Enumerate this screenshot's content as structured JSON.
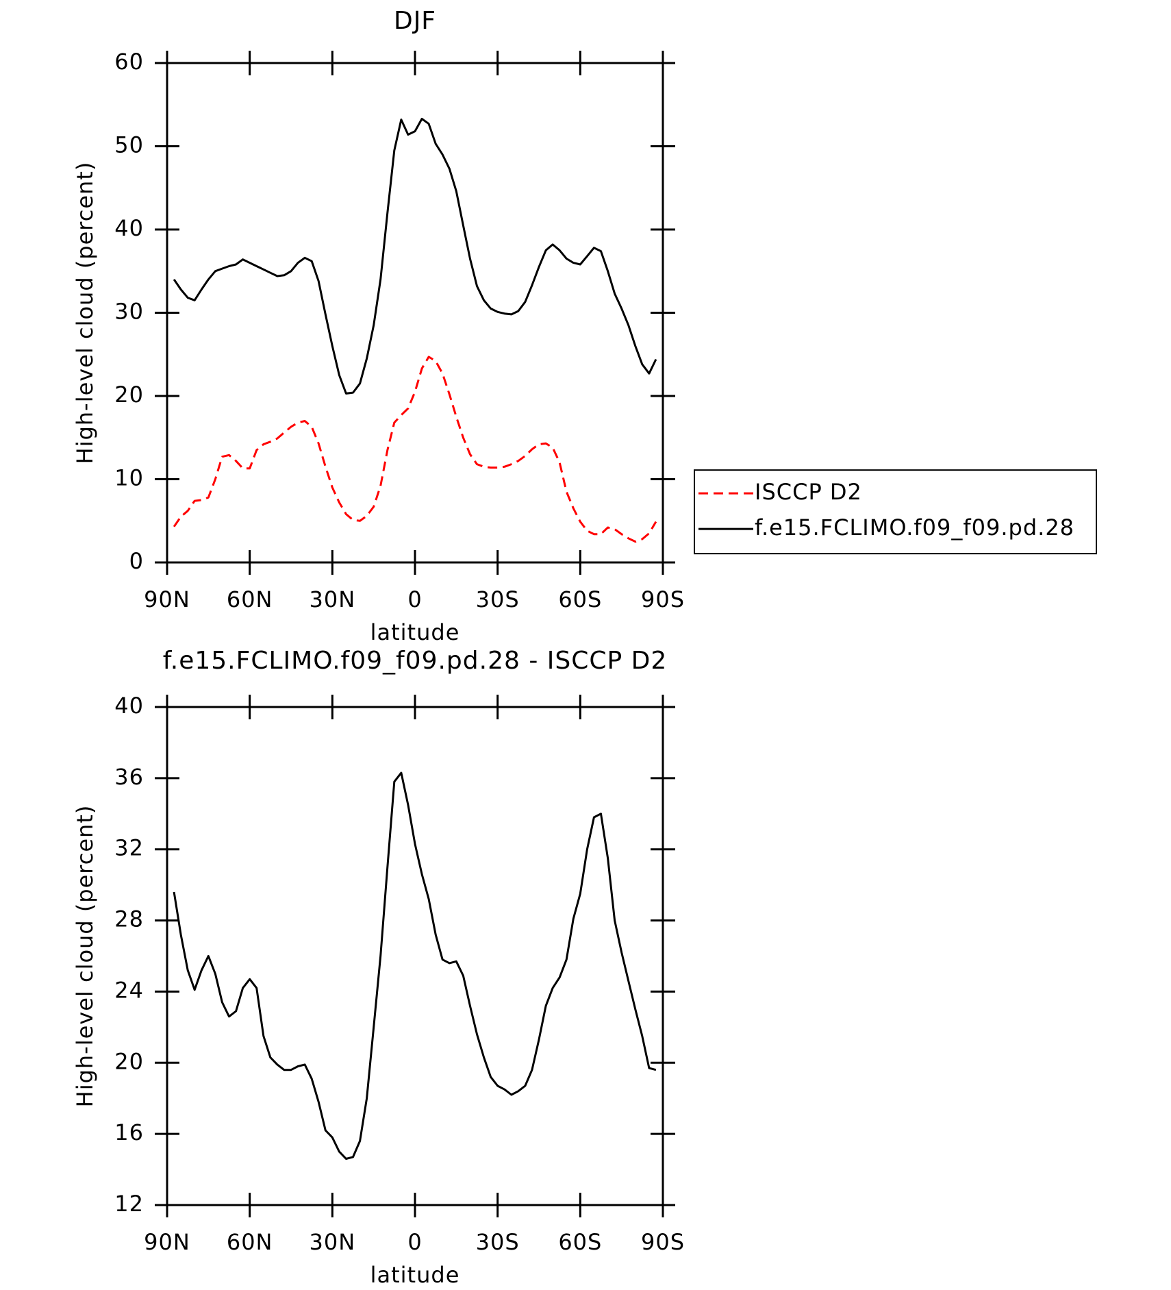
{
  "chart_data": [
    {
      "type": "line",
      "title": "DJF",
      "xlabel": "latitude",
      "ylabel": "High-level cloud (percent)",
      "x": [
        87.5,
        85,
        82.5,
        80,
        77.5,
        75,
        72.5,
        70,
        67.5,
        65,
        62.5,
        60,
        57.5,
        55,
        52.5,
        50,
        47.5,
        45,
        42.5,
        40,
        37.5,
        35,
        32.5,
        30,
        27.5,
        25,
        22.5,
        20,
        17.5,
        15,
        12.5,
        10,
        7.5,
        5,
        2.5,
        0,
        -2.5,
        -5,
        -7.5,
        -10,
        -12.5,
        -15,
        -17.5,
        -20,
        -22.5,
        -25,
        -27.5,
        -30,
        -32.5,
        -35,
        -37.5,
        -40,
        -42.5,
        -45,
        -47.5,
        -50,
        -52.5,
        -55,
        -57.5,
        -60,
        -62.5,
        -65,
        -67.5,
        -70,
        -72.5,
        -75,
        -77.5,
        -80,
        -82.5,
        -85,
        -87.5
      ],
      "series": [
        {
          "name": "ISCCP D2",
          "color": "#ff0000",
          "line_style": "dashed",
          "values": [
            4.3,
            5.5,
            6.2,
            7.4,
            7.5,
            7.8,
            10,
            12.7,
            12.9,
            12.2,
            11.3,
            11.3,
            13.5,
            14.2,
            14.5,
            14.9,
            15.6,
            16.3,
            16.8,
            17.0,
            16.3,
            14.3,
            11.5,
            9.0,
            7.2,
            5.8,
            5.1,
            5.0,
            5.6,
            6.7,
            9.2,
            13.5,
            16.8,
            17.7,
            18.5,
            20.5,
            23.3,
            24.7,
            24.2,
            22.7,
            20.2,
            17.5,
            15.0,
            13.0,
            11.8,
            11.5,
            11.4,
            11.4,
            11.5,
            11.8,
            12.2,
            12.8,
            13.6,
            14.2,
            14.3,
            13.8,
            12.0,
            8.5,
            6.5,
            4.9,
            3.8,
            3.4,
            3.4,
            4.2,
            4.0,
            3.4,
            2.9,
            2.5,
            2.8,
            3.5,
            4.9
          ]
        },
        {
          "name": "f.e15.FCLIMO.f09_f09.pd.28",
          "color": "#000000",
          "line_style": "solid",
          "values": [
            34.0,
            32.8,
            31.8,
            31.5,
            32.8,
            34.0,
            35.0,
            35.3,
            35.6,
            35.8,
            36.4,
            36.0,
            35.6,
            35.2,
            34.8,
            34.4,
            34.5,
            35.0,
            36.0,
            36.6,
            36.2,
            33.8,
            29.8,
            26.0,
            22.5,
            20.3,
            20.4,
            21.5,
            24.5,
            28.5,
            34,
            42,
            49.5,
            53.2,
            51.4,
            51.8,
            53.3,
            52.7,
            50.3,
            49.0,
            47.3,
            44.6,
            40.5,
            36.5,
            33.2,
            31.5,
            30.5,
            30.1,
            29.9,
            29.8,
            30.2,
            31.3,
            33.3,
            35.5,
            37.5,
            38.2,
            37.5,
            36.5,
            36.0,
            35.8,
            36.8,
            37.8,
            37.4,
            35.0,
            32.3,
            30.5,
            28.5,
            26.0,
            23.8,
            22.7,
            24.4
          ]
        }
      ],
      "xlim": [
        90,
        -90
      ],
      "xticks": [
        {
          "value": 90,
          "label": "90N"
        },
        {
          "value": 60,
          "label": "60N"
        },
        {
          "value": 30,
          "label": "30N"
        },
        0,
        {
          "value": -30,
          "label": "30S"
        },
        {
          "value": -60,
          "label": "60S"
        },
        {
          "value": -90,
          "label": "90S"
        }
      ],
      "ylim": [
        0,
        60
      ],
      "yticks": [
        0,
        10,
        20,
        30,
        40,
        50,
        60
      ],
      "legend": "right"
    },
    {
      "type": "line",
      "title": "f.e15.FCLIMO.f09_f09.pd.28 - ISCCP D2",
      "xlabel": "latitude",
      "ylabel": "High-level cloud (percent)",
      "x": [
        87.5,
        85,
        82.5,
        80,
        77.5,
        75,
        72.5,
        70,
        67.5,
        65,
        62.5,
        60,
        57.5,
        55,
        52.5,
        50,
        47.5,
        45,
        42.5,
        40,
        37.5,
        35,
        32.5,
        30,
        27.5,
        25,
        22.5,
        20,
        17.5,
        15,
        12.5,
        10,
        7.5,
        5,
        2.5,
        0,
        -2.5,
        -5,
        -7.5,
        -10,
        -12.5,
        -15,
        -17.5,
        -20,
        -22.5,
        -25,
        -27.5,
        -30,
        -32.5,
        -35,
        -37.5,
        -40,
        -42.5,
        -45,
        -47.5,
        -50,
        -52.5,
        -55,
        -57.5,
        -60,
        -62.5,
        -65,
        -67.5,
        -70,
        -72.5,
        -75,
        -77.5,
        -80,
        -82.5,
        -85,
        -87.5
      ],
      "color": "#000000",
      "values": [
        29.6,
        27.2,
        25.2,
        24.1,
        25.2,
        26.0,
        25.0,
        23.4,
        22.6,
        22.9,
        24.2,
        24.7,
        24.2,
        21.5,
        20.3,
        19.9,
        19.6,
        19.6,
        19.8,
        19.9,
        19.1,
        17.8,
        16.2,
        15.8,
        15.0,
        14.6,
        14.7,
        15.6,
        18.0,
        22.0,
        26.0,
        31.0,
        35.8,
        36.3,
        34.5,
        32.3,
        30.6,
        29.2,
        27.2,
        25.8,
        25.6,
        25.7,
        24.9,
        23.2,
        21.6,
        20.3,
        19.2,
        18.7,
        18.5,
        18.2,
        18.4,
        18.7,
        19.6,
        21.3,
        23.2,
        24.2,
        24.8,
        25.8,
        28.1,
        29.5,
        32.0,
        33.8,
        34.0,
        31.5,
        28.0,
        26.2,
        24.6,
        23.0,
        21.5,
        19.7,
        19.6
      ],
      "xlim": [
        90,
        -90
      ],
      "xticks": [
        {
          "value": 90,
          "label": "90N"
        },
        {
          "value": 60,
          "label": "60N"
        },
        {
          "value": 30,
          "label": "30N"
        },
        0,
        {
          "value": -30,
          "label": "30S"
        },
        {
          "value": -60,
          "label": "60S"
        },
        {
          "value": -90,
          "label": "90S"
        }
      ],
      "ylim": [
        12,
        40
      ],
      "yticks": [
        12,
        16,
        20,
        24,
        28,
        32,
        36,
        40
      ]
    }
  ]
}
